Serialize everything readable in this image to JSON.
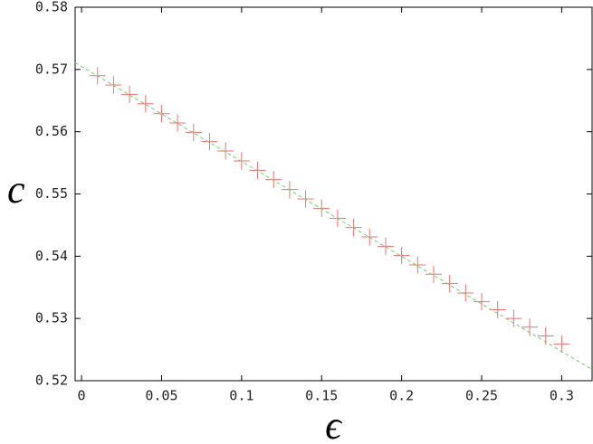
{
  "chart_data": {
    "type": "errorbar",
    "xlabel": "ϵ",
    "ylabel": "c",
    "xlim": [
      -0.004,
      0.319
    ],
    "ylim": [
      0.52,
      0.58
    ],
    "xticks": [
      0,
      0.05,
      0.1,
      0.15,
      0.2,
      0.25,
      0.3
    ],
    "yticks": [
      0.52,
      0.53,
      0.54,
      0.55,
      0.56,
      0.57,
      0.58
    ],
    "series": [
      {
        "color": "#f07070",
        "error": 0.0014,
        "x": [
          0.01,
          0.02,
          0.03,
          0.04,
          0.05,
          0.06,
          0.07,
          0.08,
          0.09,
          0.1,
          0.11,
          0.12,
          0.13,
          0.14,
          0.15,
          0.16,
          0.17,
          0.18,
          0.19,
          0.2,
          0.21,
          0.22,
          0.23,
          0.24,
          0.25,
          0.26,
          0.27,
          0.28,
          0.29,
          0.3
        ],
        "values": [
          0.569,
          0.5675,
          0.566,
          0.5645,
          0.5629,
          0.5614,
          0.5599,
          0.5584,
          0.5569,
          0.5553,
          0.5538,
          0.5523,
          0.5507,
          0.5492,
          0.5477,
          0.5461,
          0.5446,
          0.5431,
          0.5416,
          0.5401,
          0.5386,
          0.5371,
          0.5356,
          0.5341,
          0.5327,
          0.5314,
          0.53,
          0.5286,
          0.5272,
          0.5259
        ]
      },
      {
        "type": "line",
        "color": "#70d070",
        "dashed": true,
        "x": [
          -0.004,
          0.319
        ],
        "values": [
          0.5711,
          0.5218
        ]
      }
    ]
  }
}
